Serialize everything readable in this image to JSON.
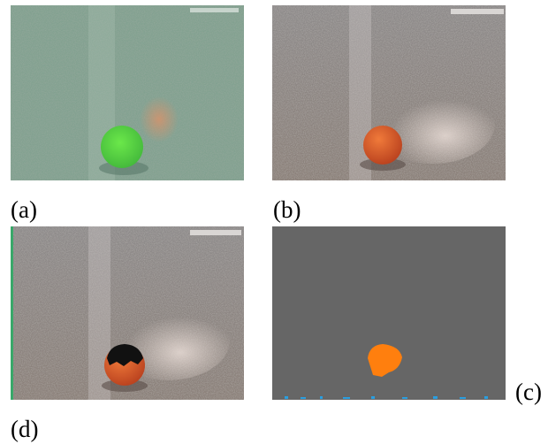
{
  "panels": [
    {
      "label": "(a)"
    },
    {
      "label": "(b)"
    },
    {
      "label": "(d)"
    },
    {
      "label": "(c)"
    }
  ]
}
